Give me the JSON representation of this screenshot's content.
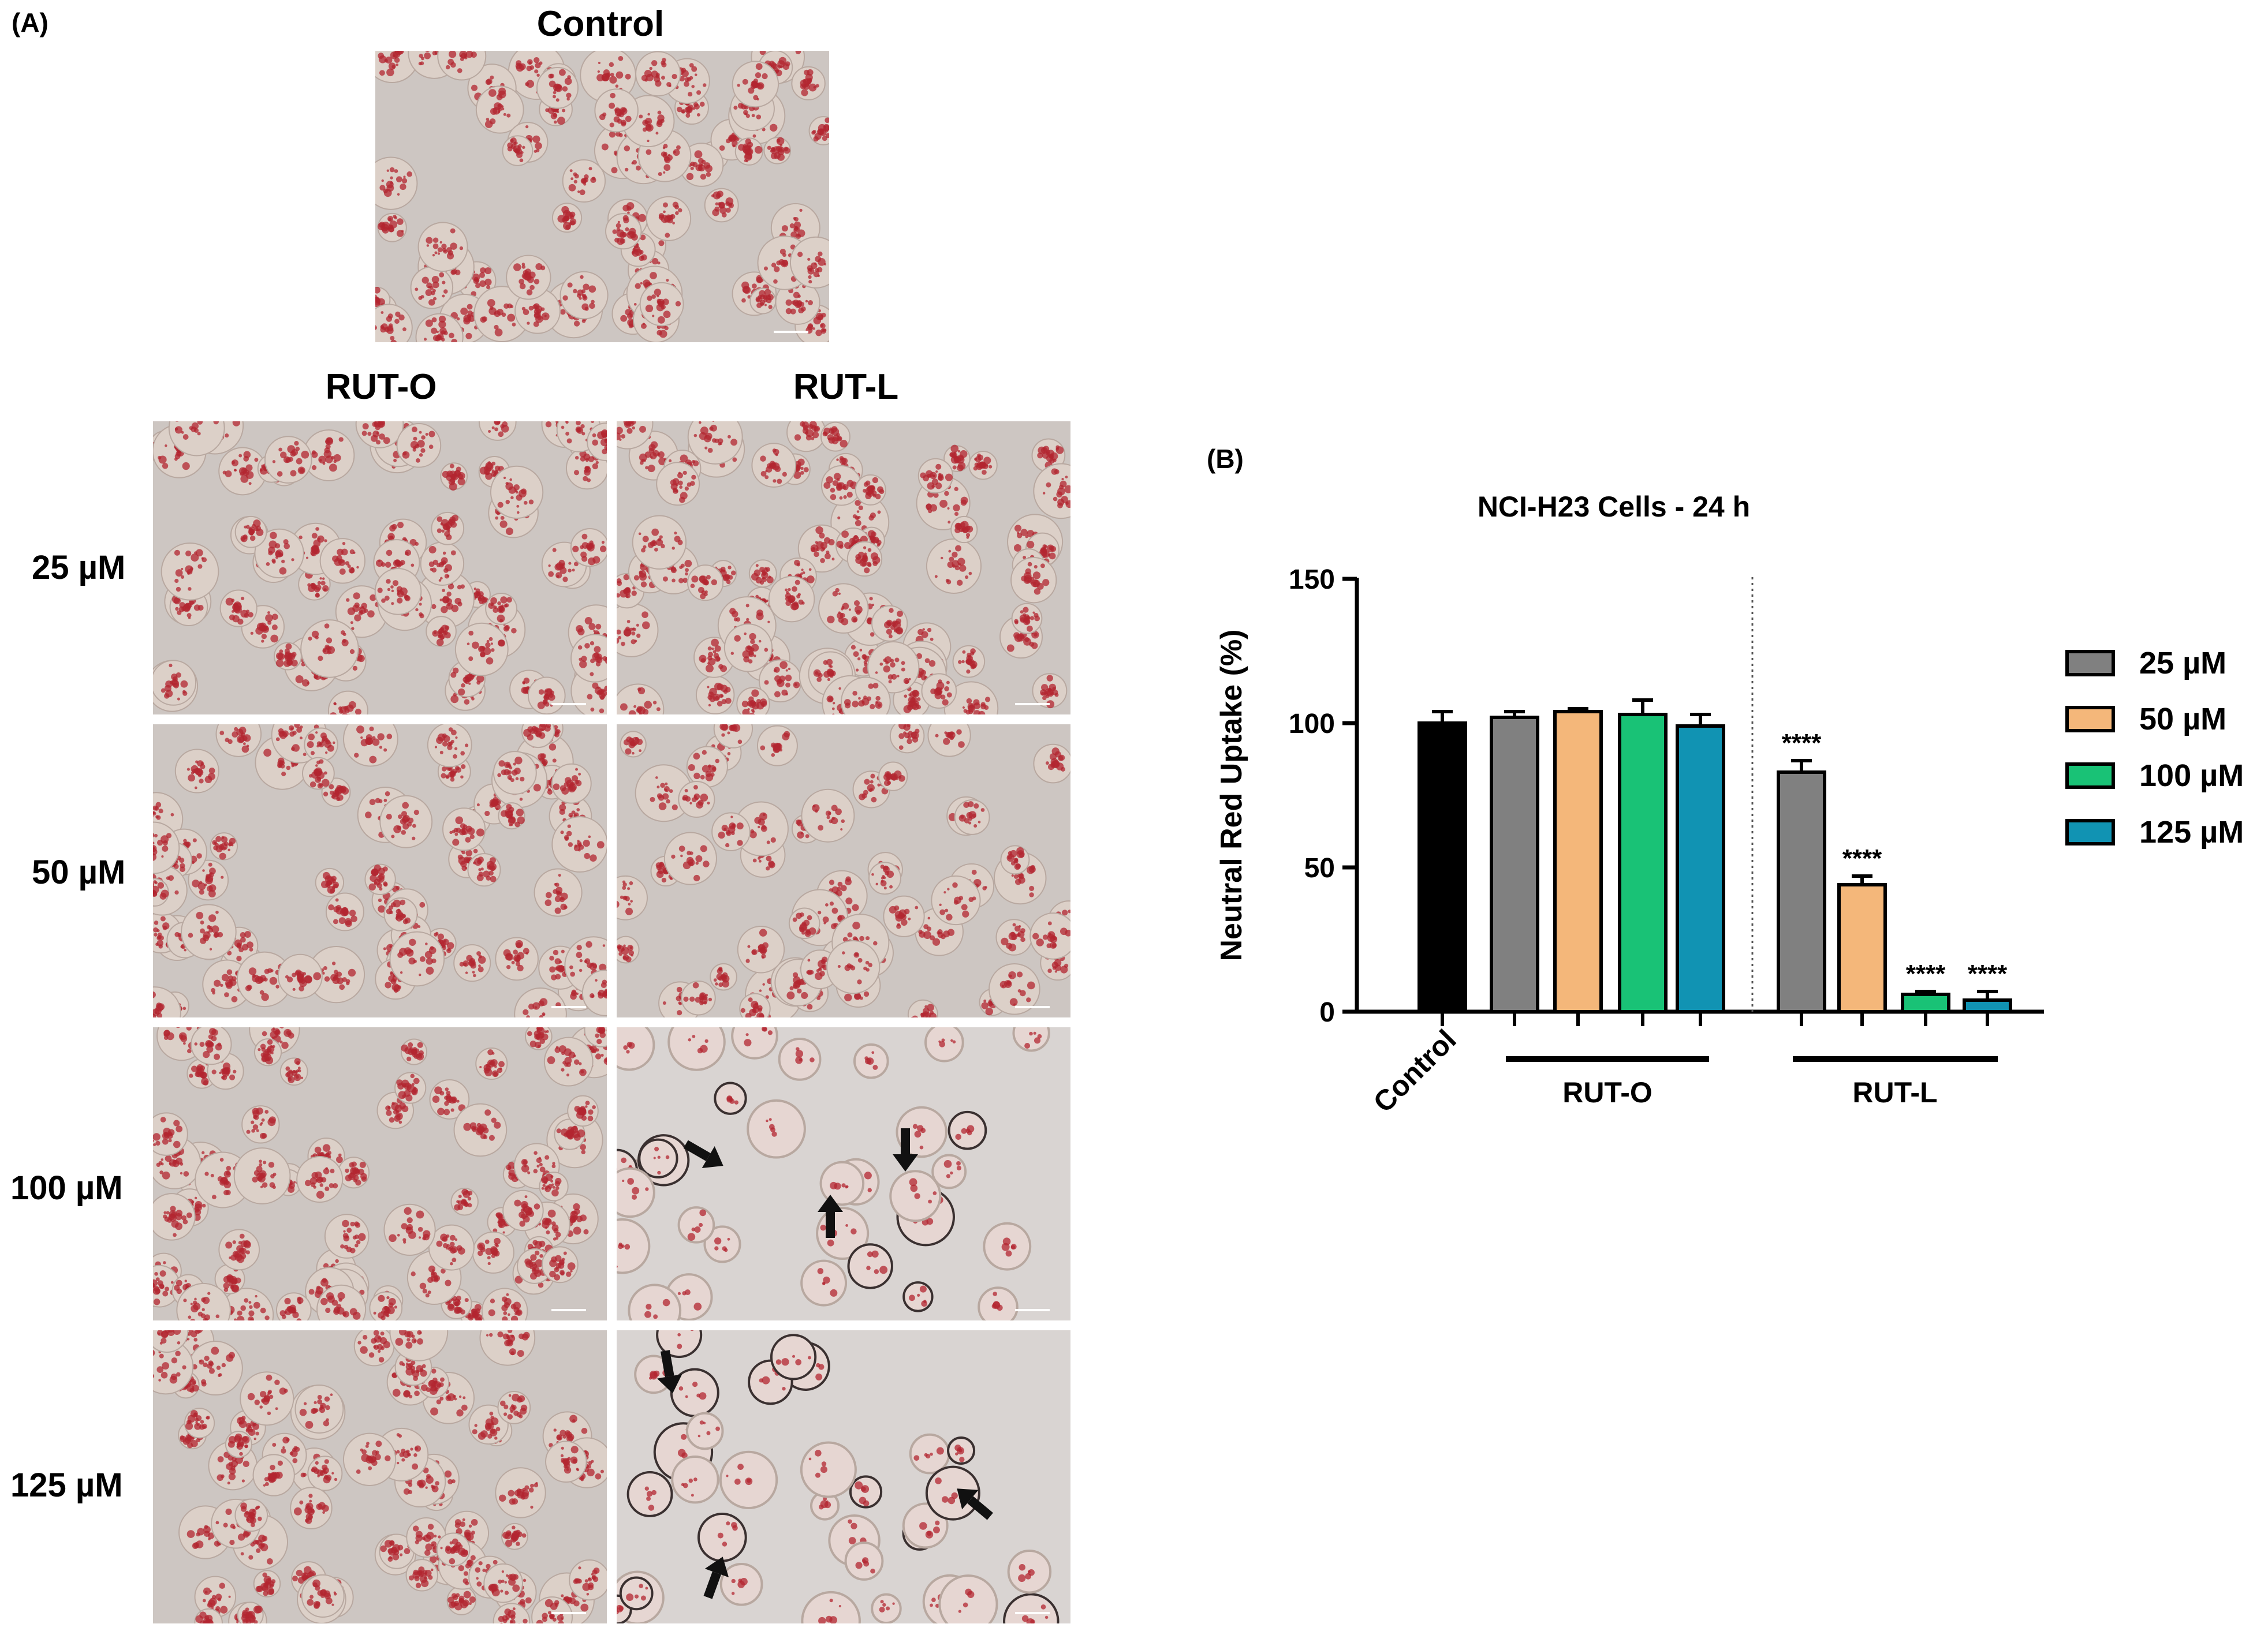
{
  "panel_a": {
    "letter": "(A)",
    "control_title": "Control",
    "col_headers": [
      "RUT-O",
      "RUT-L"
    ],
    "row_headers": [
      "25 µM",
      "50 µM",
      "100 µM",
      "125 µM"
    ]
  },
  "panel_b": {
    "letter": "(B)"
  },
  "colors": {
    "control": "#000000",
    "25uM": "#808080",
    "50uM": "#f4b77a",
    "100uM": "#19c276",
    "125uM": "#1193b3"
  },
  "chart_data": {
    "type": "bar",
    "title": "NCI-H23 Cells - 24 h",
    "ylabel": "Neutral Red Uptake (%)",
    "ylim": [
      0,
      150
    ],
    "yticks": [
      0,
      50,
      100,
      150
    ],
    "groups": [
      "Control",
      "RUT-O",
      "RUT-L"
    ],
    "legend": [
      "25 µM",
      "50 µM",
      "100 µM",
      "125 µM"
    ],
    "legend_position": "right",
    "bars": [
      {
        "group": "Control",
        "series": "Control",
        "value": 100,
        "error": 4,
        "annotation": ""
      },
      {
        "group": "RUT-O",
        "series": "25 µM",
        "value": 102,
        "error": 2,
        "annotation": ""
      },
      {
        "group": "RUT-O",
        "series": "50 µM",
        "value": 104,
        "error": 1,
        "annotation": ""
      },
      {
        "group": "RUT-O",
        "series": "100 µM",
        "value": 103,
        "error": 5,
        "annotation": ""
      },
      {
        "group": "RUT-O",
        "series": "125 µM",
        "value": 99,
        "error": 4,
        "annotation": ""
      },
      {
        "group": "RUT-L",
        "series": "25 µM",
        "value": 83,
        "error": 4,
        "annotation": "****"
      },
      {
        "group": "RUT-L",
        "series": "50 µM",
        "value": 44,
        "error": 3,
        "annotation": "****"
      },
      {
        "group": "RUT-L",
        "series": "100 µM",
        "value": 6,
        "error": 1,
        "annotation": "****"
      },
      {
        "group": "RUT-L",
        "series": "125 µM",
        "value": 4,
        "error": 3,
        "annotation": "****"
      }
    ]
  }
}
